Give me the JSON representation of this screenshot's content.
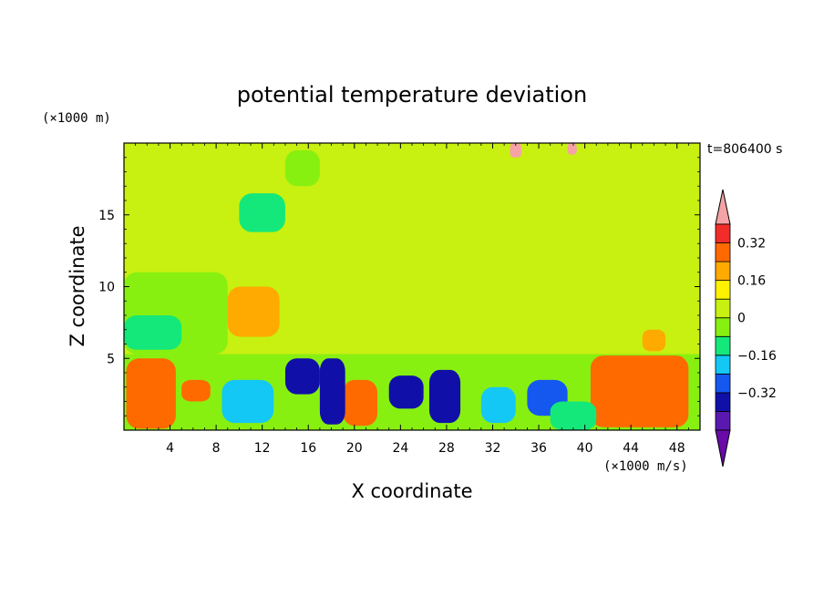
{
  "chart_data": {
    "type": "heatmap",
    "title": "potential temperature deviation",
    "xlabel": "X coordinate",
    "ylabel": "Z coordinate",
    "x_units": "(×1000 m/s)",
    "y_units": "(×1000 m)",
    "time_label": "t=806400 s",
    "xlim": [
      0,
      50
    ],
    "ylim": [
      0,
      20
    ],
    "x_ticks": [
      4,
      8,
      12,
      16,
      20,
      24,
      28,
      32,
      36,
      40,
      44,
      48
    ],
    "y_ticks": [
      5,
      10,
      15
    ],
    "colorbar": {
      "levels": [
        -0.48,
        -0.4,
        -0.32,
        -0.24,
        -0.16,
        -0.08,
        0,
        0.08,
        0.16,
        0.24,
        0.32,
        0.4
      ],
      "labels": [
        "0.32",
        "0.16",
        "0",
        "−0.16",
        "−0.32"
      ],
      "colors": [
        "#6a0aa8",
        "#5a18b0",
        "#1010a8",
        "#1458f0",
        "#14c8f5",
        "#14e87a",
        "#88f010",
        "#c8f010",
        "#fff200",
        "#ffaa00",
        "#ff6a00",
        "#f22c28",
        "#f5a3a6"
      ]
    },
    "regions": [
      {
        "v": -0.08,
        "x0": 0,
        "x1": 50,
        "z0": 0,
        "z1": 5.3
      },
      {
        "v": 0.0,
        "x0": 0,
        "x1": 50,
        "z0": 5.3,
        "z1": 20
      },
      {
        "v": 0.04,
        "x0": 3,
        "x1": 50,
        "z0": 6,
        "z1": 13
      },
      {
        "v": 0.06,
        "x0": 24,
        "x1": 45,
        "z0": 14,
        "z1": 19.5
      },
      {
        "v": -0.08,
        "x0": 0,
        "x1": 9,
        "z0": 5.3,
        "z1": 11
      },
      {
        "v": -0.12,
        "x0": 0,
        "x1": 5,
        "z0": 5.6,
        "z1": 8
      },
      {
        "v": -0.1,
        "x0": 10,
        "x1": 14,
        "z0": 13.8,
        "z1": 16.5
      },
      {
        "v": -0.06,
        "x0": 14,
        "x1": 17,
        "z0": 17,
        "z1": 19.5
      },
      {
        "v": 0.16,
        "x0": 9,
        "x1": 13.5,
        "z0": 6.5,
        "z1": 10
      },
      {
        "v": 0.16,
        "x0": 45,
        "x1": 47,
        "z0": 5.5,
        "z1": 7
      },
      {
        "v": 0.4,
        "x0": 1.2,
        "x1": 3.5,
        "z0": 0.3,
        "z1": 4.2
      },
      {
        "v": 0.3,
        "x0": 0.2,
        "x1": 4.5,
        "z0": 0.1,
        "z1": 5
      },
      {
        "v": 0.4,
        "x0": 42,
        "x1": 48,
        "z0": 1,
        "z1": 5
      },
      {
        "v": 0.3,
        "x0": 40.5,
        "x1": 49,
        "z0": 0.2,
        "z1": 5.2
      },
      {
        "v": 0.24,
        "x0": 19,
        "x1": 22,
        "z0": 0.3,
        "z1": 3.5
      },
      {
        "v": 0.24,
        "x0": 5,
        "x1": 7.5,
        "z0": 2,
        "z1": 3.5
      },
      {
        "v": -0.38,
        "x0": 17,
        "x1": 19.2,
        "z0": 0.4,
        "z1": 5
      },
      {
        "v": -0.38,
        "x0": 26.5,
        "x1": 29.2,
        "z0": 0.5,
        "z1": 4.2
      },
      {
        "v": -0.34,
        "x0": 14,
        "x1": 17,
        "z0": 2.5,
        "z1": 5
      },
      {
        "v": -0.34,
        "x0": 23,
        "x1": 26,
        "z0": 1.5,
        "z1": 3.8
      },
      {
        "v": -0.3,
        "x0": 35,
        "x1": 38.5,
        "z0": 1,
        "z1": 3.5
      },
      {
        "v": -0.22,
        "x0": 8.5,
        "x1": 13,
        "z0": 0.5,
        "z1": 3.5
      },
      {
        "v": -0.22,
        "x0": 31,
        "x1": 34,
        "z0": 0.5,
        "z1": 3
      },
      {
        "v": -0.14,
        "x0": 37,
        "x1": 41,
        "z0": 0,
        "z1": 2
      },
      {
        "v": 0.4,
        "x0": 33.5,
        "x1": 34.5,
        "z0": 19,
        "z1": 20
      },
      {
        "v": 0.4,
        "x0": 38.5,
        "x1": 39.3,
        "z0": 19.2,
        "z1": 20
      }
    ]
  }
}
